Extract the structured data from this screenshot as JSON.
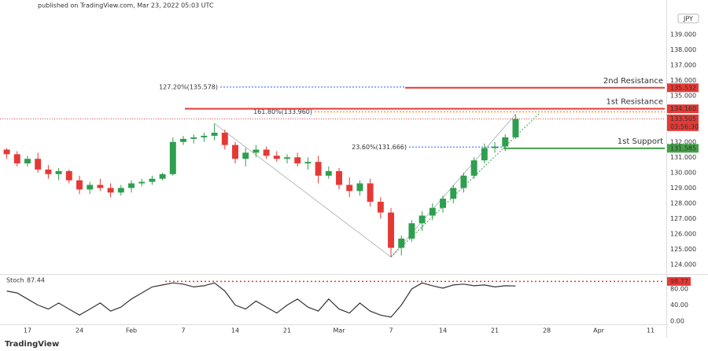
{
  "header": {
    "published": "published on TradingView.com, Mar 23, 2022 05:03 UTC",
    "brand": "TradingView",
    "currency": "JPY"
  },
  "chart_data": {
    "type": "candlestick",
    "open": [
      131.5,
      131.2,
      130.6,
      130.9,
      130.2,
      129.9,
      130.1,
      129.5,
      128.9,
      129.2,
      129.0,
      128.7,
      129.0,
      129.3,
      129.4,
      129.6,
      129.9,
      132.0,
      132.2,
      132.3,
      132.4,
      132.6,
      131.8,
      130.9,
      131.3,
      131.5,
      131.1,
      130.9,
      131.0,
      130.6,
      130.7,
      129.8,
      130.1,
      129.2,
      128.8,
      129.3,
      128.1,
      127.4,
      125.1,
      125.7,
      126.7,
      127.2,
      127.7,
      128.3,
      129.0,
      129.8,
      130.8,
      131.6,
      131.7,
      132.3
    ],
    "high": [
      131.6,
      131.4,
      131.1,
      131.3,
      130.5,
      130.3,
      130.2,
      129.8,
      129.4,
      129.6,
      129.3,
      129.2,
      129.5,
      129.6,
      129.8,
      130.0,
      132.3,
      132.4,
      132.5,
      132.6,
      133.2,
      132.8,
      132.0,
      131.6,
      131.8,
      131.7,
      131.4,
      131.2,
      131.3,
      131.0,
      131.1,
      130.4,
      130.3,
      129.7,
      129.5,
      129.6,
      128.4,
      127.7,
      125.9,
      126.9,
      127.5,
      128.0,
      128.5,
      129.2,
      130.0,
      131.0,
      131.9,
      132.0,
      132.5,
      133.8
    ],
    "low": [
      130.9,
      130.4,
      130.4,
      130.0,
      129.6,
      129.5,
      129.3,
      128.6,
      128.6,
      128.8,
      128.4,
      128.5,
      128.7,
      129.1,
      129.2,
      129.5,
      129.8,
      131.8,
      131.9,
      132.0,
      132.1,
      131.5,
      130.6,
      130.4,
      131.0,
      130.9,
      130.7,
      130.6,
      130.4,
      130.2,
      129.3,
      129.6,
      128.9,
      128.4,
      128.5,
      127.8,
      127.0,
      124.5,
      124.6,
      125.5,
      126.2,
      126.9,
      127.4,
      128.0,
      128.7,
      129.6,
      130.6,
      131.3,
      131.4,
      132.2
    ],
    "close": [
      131.2,
      130.6,
      130.9,
      130.2,
      129.9,
      130.1,
      129.5,
      128.9,
      129.2,
      129.0,
      128.7,
      129.0,
      129.3,
      129.4,
      129.6,
      129.9,
      132.0,
      132.2,
      132.3,
      132.4,
      132.6,
      131.8,
      130.9,
      131.3,
      131.5,
      131.1,
      130.9,
      131.0,
      130.6,
      130.7,
      129.8,
      130.1,
      129.2,
      128.8,
      129.3,
      128.1,
      127.4,
      125.1,
      125.7,
      126.7,
      127.2,
      127.7,
      128.3,
      129.0,
      129.8,
      130.8,
      131.6,
      131.7,
      132.3,
      133.5
    ],
    "up_color": "#2e9e4f",
    "down_color": "#e53935",
    "xlim": [
      -0.65,
      63.36
    ],
    "xticks": [
      {
        "value": 2,
        "label": "17"
      },
      {
        "value": 7,
        "label": "24"
      },
      {
        "value": 12,
        "label": "Feb"
      },
      {
        "value": 17,
        "label": "7"
      },
      {
        "value": 22,
        "label": "14"
      },
      {
        "value": 27,
        "label": "21"
      },
      {
        "value": 32,
        "label": "Mar"
      },
      {
        "value": 37,
        "label": "7"
      },
      {
        "value": 42,
        "label": "14"
      },
      {
        "value": 47,
        "label": "21"
      },
      {
        "value": 52,
        "label": "28"
      },
      {
        "value": 57,
        "label": "Apr"
      },
      {
        "value": 62,
        "label": "11"
      }
    ],
    "ylim": [
      123.44,
      140.74
    ],
    "yticks": [
      {
        "value": 124,
        "label": "124.000"
      },
      {
        "value": 125,
        "label": "125.000"
      },
      {
        "value": 126,
        "label": "126.000"
      },
      {
        "value": 127,
        "label": "127.000"
      },
      {
        "value": 128,
        "label": "128.000"
      },
      {
        "value": 129,
        "label": "129.000"
      },
      {
        "value": 130,
        "label": "130.000"
      },
      {
        "value": 131,
        "label": "131.000"
      },
      {
        "value": 132,
        "label": "132.000"
      },
      {
        "value": 133,
        "label": "133.000"
      },
      {
        "value": 134,
        "label": "134.000"
      },
      {
        "value": 135,
        "label": "135.000"
      },
      {
        "value": 136,
        "label": "136.000"
      },
      {
        "value": 137,
        "label": "137.000"
      },
      {
        "value": 138,
        "label": "138.000"
      },
      {
        "value": 139,
        "label": "139.000"
      }
    ],
    "levels": [
      {
        "name": "2nd Resistance",
        "value": 135.532,
        "label": "135.532",
        "color": "#e53935"
      },
      {
        "name": "1st Resistance",
        "value": 134.16,
        "label": "134.160",
        "color": "#e53935"
      },
      {
        "name": "1st Support",
        "value": 131.585,
        "label": "131.585",
        "color": "#43a047"
      }
    ],
    "fib_levels": [
      {
        "label": "127.20%(135.578)",
        "value": 135.578,
        "color": "#2962ff"
      },
      {
        "label": "161.80%(133.960)",
        "value": 133.96,
        "color": "#f57c00"
      },
      {
        "label": "23.60%(131.666)",
        "value": 131.666,
        "color": "#2962ff"
      }
    ],
    "last_price": {
      "value": 133.505,
      "label": "133.505",
      "countdown": "03:56:30",
      "color": "#e53935"
    },
    "stoch": {
      "type": "line",
      "title": "Stoch",
      "color": "#333333",
      "values": [
        75,
        70,
        55,
        40,
        30,
        45,
        30,
        15,
        30,
        45,
        25,
        35,
        55,
        70,
        85,
        90,
        95,
        92,
        85,
        88,
        95,
        75,
        40,
        30,
        50,
        35,
        20,
        40,
        55,
        35,
        25,
        55,
        30,
        20,
        45,
        25,
        15,
        10,
        40,
        80,
        95,
        88,
        82,
        90,
        92,
        88,
        90,
        85,
        88,
        87.44
      ],
      "ylim": [
        -7.8,
        115.1
      ],
      "yticks": [
        {
          "value": 0,
          "label": "0.00"
        },
        {
          "value": 40,
          "label": "40.00"
        },
        {
          "value": 80,
          "label": "80.00"
        }
      ],
      "level": {
        "value": 98.77,
        "color": "#e53935"
      }
    }
  }
}
